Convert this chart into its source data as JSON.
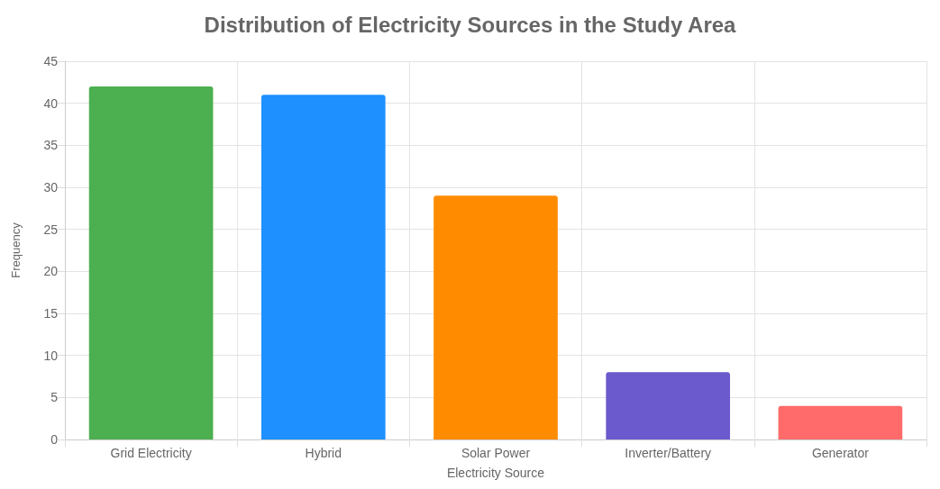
{
  "chart_data": {
    "type": "bar",
    "title": "Distribution of Electricity Sources in the Study Area",
    "xlabel": "Electricity Source",
    "ylabel": "Frequency",
    "categories": [
      "Grid Electricity",
      "Hybrid",
      "Solar Power",
      "Inverter/Battery",
      "Generator"
    ],
    "values": [
      42,
      41,
      29,
      8,
      4
    ],
    "colors": [
      "#4caf50",
      "#1e90ff",
      "#ff8c00",
      "#6a5acd",
      "#ff6b6b"
    ],
    "ylim": [
      0,
      45
    ],
    "yticks": [
      0,
      5,
      10,
      15,
      20,
      25,
      30,
      35,
      40,
      45
    ],
    "grid": true
  }
}
